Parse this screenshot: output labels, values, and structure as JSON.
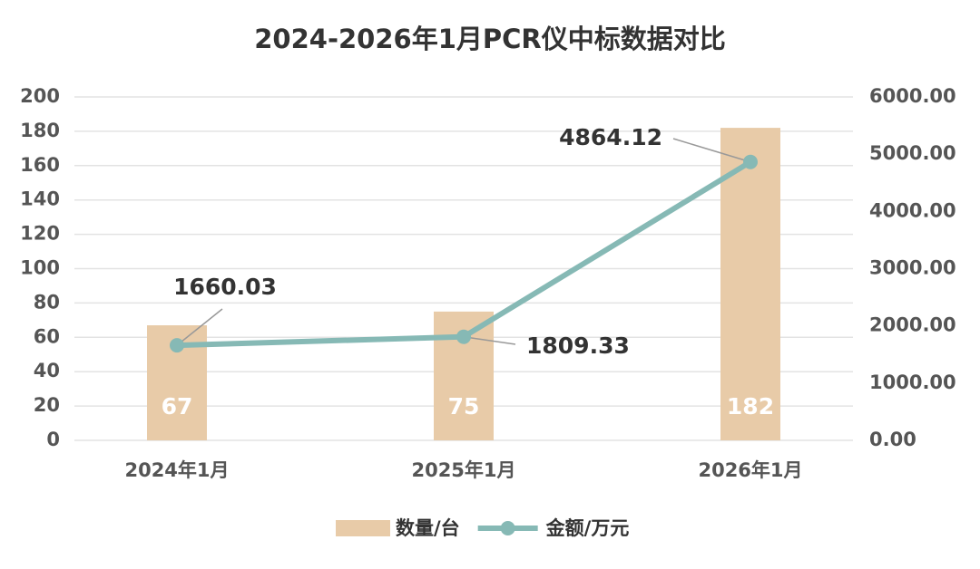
{
  "chart_data": {
    "type": "combo",
    "title": "2024-2026年1月PCR仪中标数据对比",
    "categories": [
      "2024年1月",
      "2025年1月",
      "2026年1月"
    ],
    "series": [
      {
        "name": "数量/台",
        "type": "bar",
        "color": "#e8cba8",
        "values": [
          67,
          75,
          182
        ]
      },
      {
        "name": "金额/万元",
        "type": "line",
        "axis": "y2",
        "color": "#86b9b5",
        "values": [
          1660.03,
          1809.33,
          4864.12
        ]
      }
    ],
    "ylim": [
      0,
      200
    ],
    "yticks": [
      0,
      20,
      40,
      60,
      80,
      100,
      120,
      140,
      160,
      180,
      200
    ],
    "y2lim": [
      0,
      6000
    ],
    "y2ticks": [
      {
        "value": 0,
        "label": "0.00"
      },
      {
        "value": 1000,
        "label": "1000.00"
      },
      {
        "value": 2000,
        "label": "2000.00"
      },
      {
        "value": 3000,
        "label": "3000.00"
      },
      {
        "value": 4000,
        "label": "4000.00"
      },
      {
        "value": 5000,
        "label": "5000.00"
      },
      {
        "value": 6000,
        "label": "6000.00"
      }
    ],
    "grid": true,
    "legend": "bottom"
  }
}
